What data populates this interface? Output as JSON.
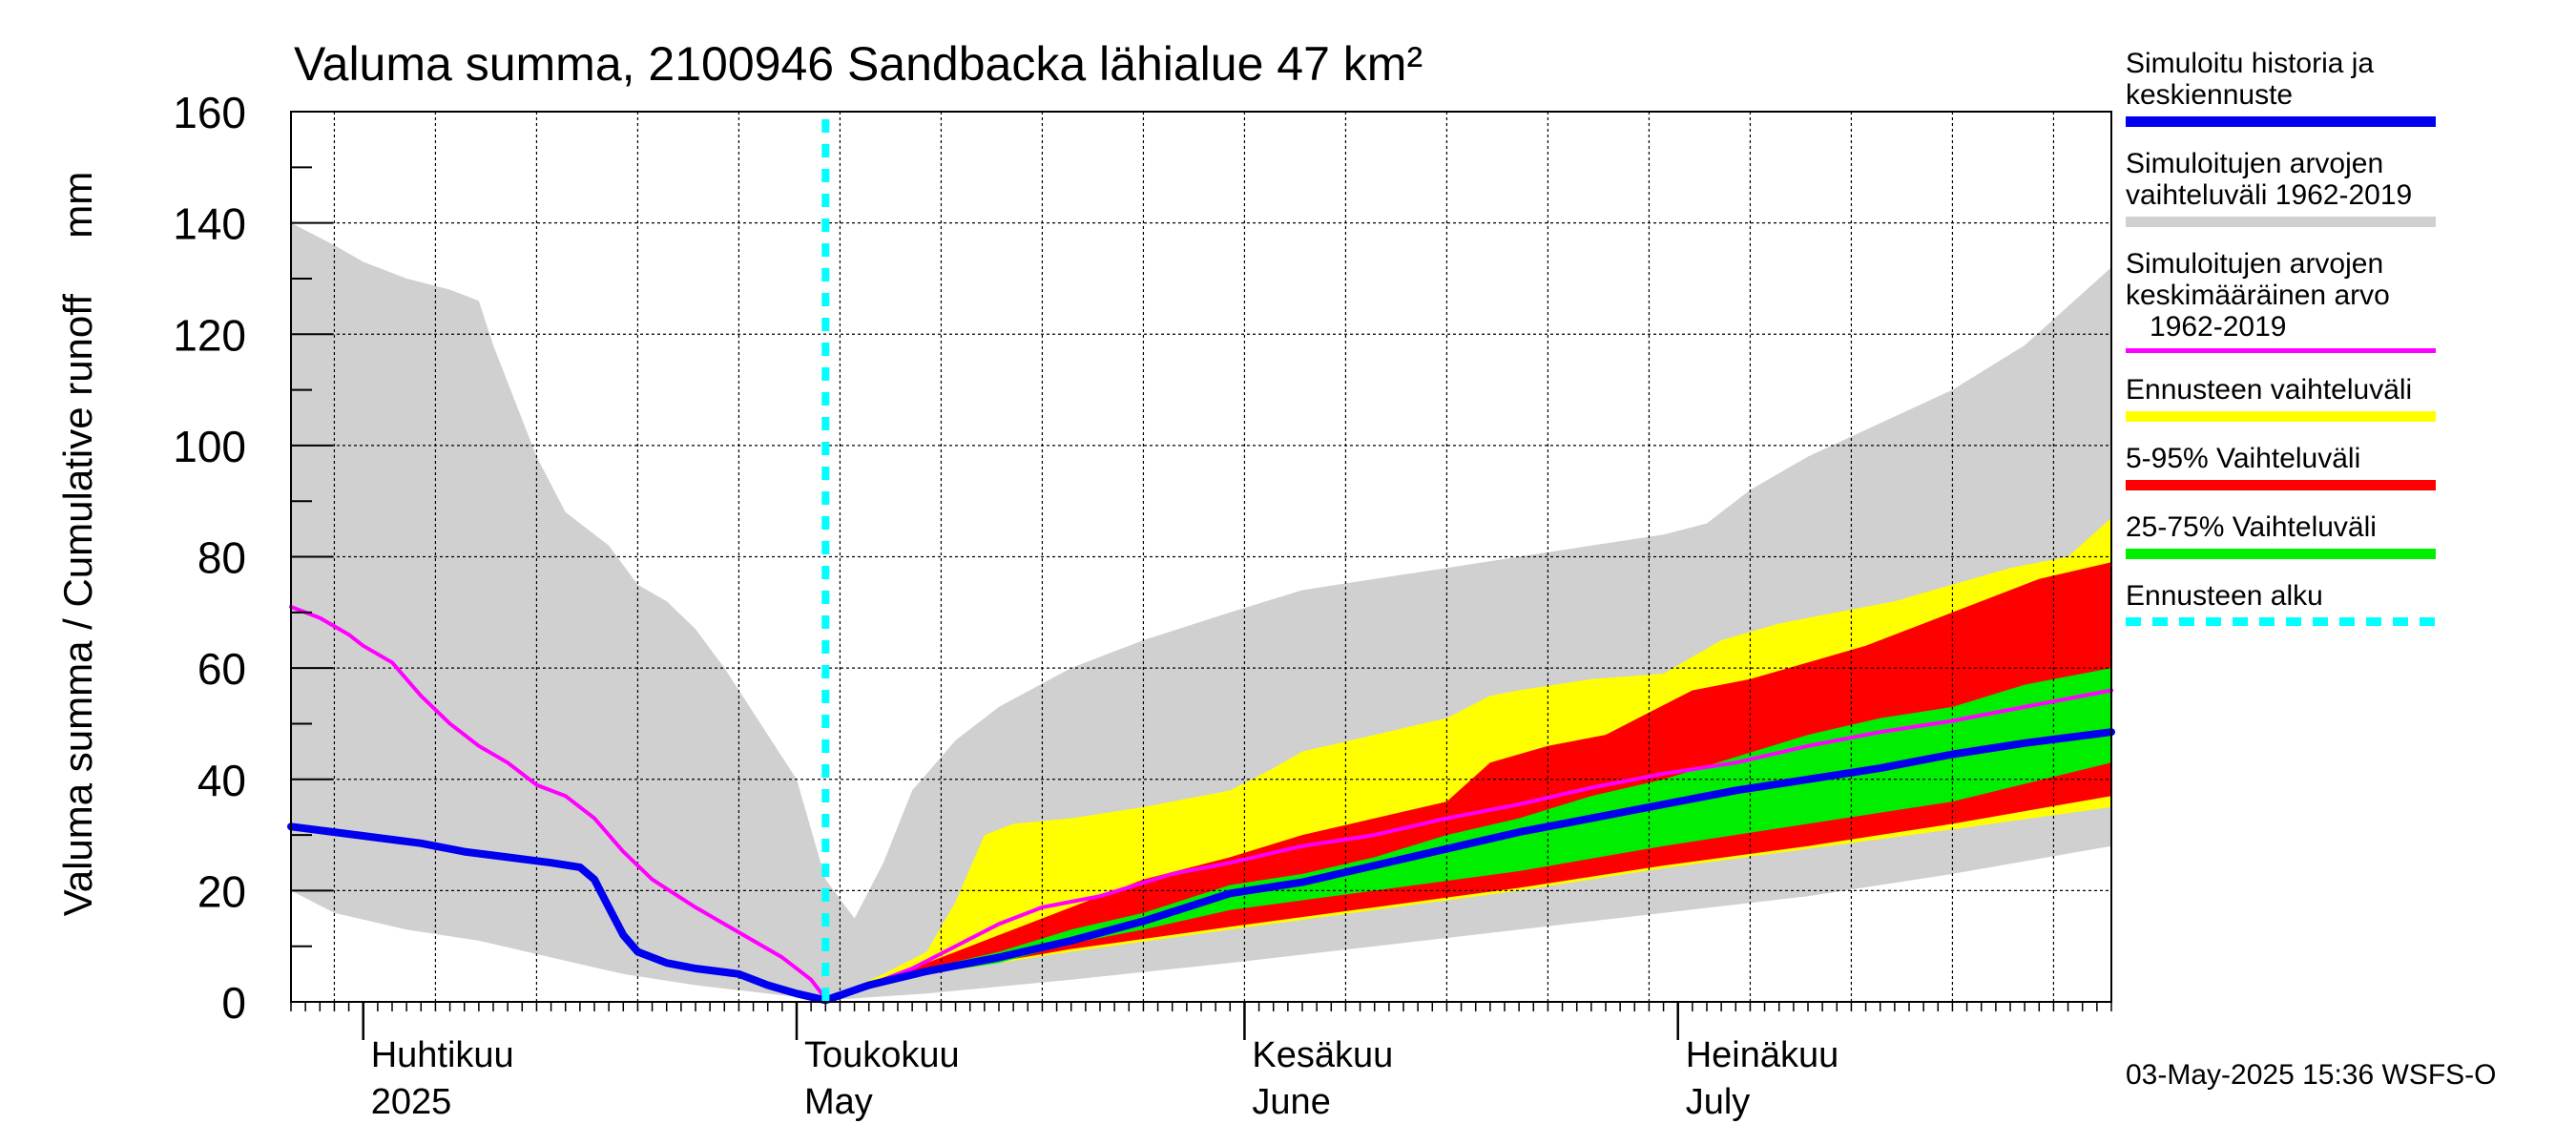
{
  "chart_data": {
    "type": "area",
    "title": "Valuma summa, 2100946 Sandbacka lähialue 47 km²",
    "ylabel": "Valuma summa / Cumulative runoff     mm",
    "ylim": [
      0,
      160
    ],
    "yticks": [
      "0",
      "20",
      "40",
      "60",
      "80",
      "100",
      "120",
      "140",
      "160"
    ],
    "xlim": [
      "2025-03-27",
      "2025-07-31"
    ],
    "forecast_start": "2025-05-03",
    "grid": true,
    "legend_placement": "right",
    "month_labels": [
      {
        "date": "2025-04-01",
        "fi": "Huhtikuu",
        "en": "2025"
      },
      {
        "date": "2025-05-01",
        "fi": "Toukokuu",
        "en": "May"
      },
      {
        "date": "2025-06-01",
        "fi": "Kesäkuu",
        "en": "June"
      },
      {
        "date": "2025-07-01",
        "fi": "Heinäkuu",
        "en": "July"
      }
    ],
    "series": [
      {
        "name": "Simuloitujen arvojen vaihteluväli 1962-2019",
        "kind": "band",
        "color": "#d0d0d0",
        "upper": [
          [
            "2025-03-27",
            140
          ],
          [
            "2025-03-30",
            136
          ],
          [
            "2025-04-01",
            133
          ],
          [
            "2025-04-04",
            130
          ],
          [
            "2025-04-07",
            128
          ],
          [
            "2025-04-09",
            126
          ],
          [
            "2025-04-10",
            118
          ],
          [
            "2025-04-13",
            98
          ],
          [
            "2025-04-15",
            88
          ],
          [
            "2025-04-18",
            82
          ],
          [
            "2025-04-20",
            75
          ],
          [
            "2025-04-22",
            72
          ],
          [
            "2025-04-24",
            67
          ],
          [
            "2025-04-26",
            60
          ],
          [
            "2025-04-28",
            52
          ],
          [
            "2025-05-01",
            40
          ],
          [
            "2025-05-03",
            22
          ],
          [
            "2025-05-05",
            15
          ],
          [
            "2025-05-07",
            25
          ],
          [
            "2025-05-09",
            38
          ],
          [
            "2025-05-12",
            47
          ],
          [
            "2025-05-15",
            53
          ],
          [
            "2025-05-20",
            60
          ],
          [
            "2025-05-25",
            65
          ],
          [
            "2025-05-31",
            70
          ],
          [
            "2025-06-05",
            74
          ],
          [
            "2025-06-10",
            76
          ],
          [
            "2025-06-15",
            78
          ],
          [
            "2025-06-20",
            80
          ],
          [
            "2025-06-25",
            82
          ],
          [
            "2025-06-30",
            84
          ],
          [
            "2025-07-03",
            86
          ],
          [
            "2025-07-06",
            92
          ],
          [
            "2025-07-10",
            98
          ],
          [
            "2025-07-15",
            104
          ],
          [
            "2025-07-20",
            110
          ],
          [
            "2025-07-25",
            118
          ],
          [
            "2025-07-31",
            132
          ]
        ],
        "lower": [
          [
            "2025-03-27",
            20
          ],
          [
            "2025-03-30",
            16
          ],
          [
            "2025-04-04",
            13
          ],
          [
            "2025-04-09",
            11
          ],
          [
            "2025-04-14",
            8
          ],
          [
            "2025-04-19",
            5
          ],
          [
            "2025-04-24",
            3
          ],
          [
            "2025-04-29",
            1.5
          ],
          [
            "2025-05-03",
            0.3
          ],
          [
            "2025-05-10",
            1.5
          ],
          [
            "2025-05-20",
            4
          ],
          [
            "2025-05-31",
            7
          ],
          [
            "2025-06-10",
            10
          ],
          [
            "2025-06-20",
            13
          ],
          [
            "2025-06-30",
            16
          ],
          [
            "2025-07-10",
            19
          ],
          [
            "2025-07-20",
            23
          ],
          [
            "2025-07-31",
            28
          ]
        ]
      },
      {
        "name": "Ennusteen vaihteluväli",
        "kind": "band",
        "color": "#ffff00",
        "upper": [
          [
            "2025-05-03",
            0.3
          ],
          [
            "2025-05-07",
            5
          ],
          [
            "2025-05-10",
            9
          ],
          [
            "2025-05-12",
            18
          ],
          [
            "2025-05-14",
            30
          ],
          [
            "2025-05-16",
            32
          ],
          [
            "2025-05-20",
            33
          ],
          [
            "2025-05-25",
            35
          ],
          [
            "2025-05-31",
            38
          ],
          [
            "2025-06-03",
            42
          ],
          [
            "2025-06-05",
            45
          ],
          [
            "2025-06-10",
            48
          ],
          [
            "2025-06-15",
            51
          ],
          [
            "2025-06-18",
            55
          ],
          [
            "2025-06-20",
            56
          ],
          [
            "2025-06-25",
            58
          ],
          [
            "2025-06-30",
            59
          ],
          [
            "2025-07-04",
            65
          ],
          [
            "2025-07-08",
            68
          ],
          [
            "2025-07-12",
            70
          ],
          [
            "2025-07-16",
            72
          ],
          [
            "2025-07-20",
            75
          ],
          [
            "2025-07-24",
            78
          ],
          [
            "2025-07-28",
            80
          ],
          [
            "2025-07-31",
            87
          ]
        ],
        "lower": [
          [
            "2025-05-03",
            0.3
          ],
          [
            "2025-05-10",
            5
          ],
          [
            "2025-05-20",
            9
          ],
          [
            "2025-05-31",
            13
          ],
          [
            "2025-06-10",
            16.5
          ],
          [
            "2025-06-20",
            20
          ],
          [
            "2025-06-30",
            24
          ],
          [
            "2025-07-10",
            27.5
          ],
          [
            "2025-07-20",
            31
          ],
          [
            "2025-07-31",
            35
          ]
        ]
      },
      {
        "name": "5-95% Vaihteluväli",
        "kind": "band",
        "color": "#ff0000",
        "upper": [
          [
            "2025-05-03",
            0.3
          ],
          [
            "2025-05-10",
            7
          ],
          [
            "2025-05-15",
            12
          ],
          [
            "2025-05-20",
            17
          ],
          [
            "2025-05-25",
            22
          ],
          [
            "2025-05-31",
            26
          ],
          [
            "2025-06-05",
            30
          ],
          [
            "2025-06-10",
            33
          ],
          [
            "2025-06-15",
            36
          ],
          [
            "2025-06-18",
            43
          ],
          [
            "2025-06-22",
            46
          ],
          [
            "2025-06-26",
            48
          ],
          [
            "2025-06-29",
            52
          ],
          [
            "2025-07-02",
            56
          ],
          [
            "2025-07-06",
            58
          ],
          [
            "2025-07-10",
            61
          ],
          [
            "2025-07-14",
            64
          ],
          [
            "2025-07-18",
            68
          ],
          [
            "2025-07-22",
            72
          ],
          [
            "2025-07-26",
            76
          ],
          [
            "2025-07-31",
            79
          ]
        ],
        "lower": [
          [
            "2025-05-03",
            0.3
          ],
          [
            "2025-05-10",
            5
          ],
          [
            "2025-05-20",
            9.5
          ],
          [
            "2025-05-31",
            13.5
          ],
          [
            "2025-06-10",
            17
          ],
          [
            "2025-06-20",
            20.5
          ],
          [
            "2025-06-30",
            24.5
          ],
          [
            "2025-07-10",
            28
          ],
          [
            "2025-07-20",
            32
          ],
          [
            "2025-07-31",
            37
          ]
        ]
      },
      {
        "name": "25-75% Vaihteluväli",
        "kind": "band",
        "color": "#00ee00",
        "upper": [
          [
            "2025-05-03",
            0.3
          ],
          [
            "2025-05-10",
            6
          ],
          [
            "2025-05-15",
            9
          ],
          [
            "2025-05-20",
            13
          ],
          [
            "2025-05-25",
            16
          ],
          [
            "2025-05-31",
            21
          ],
          [
            "2025-06-05",
            23
          ],
          [
            "2025-06-10",
            26
          ],
          [
            "2025-06-15",
            30
          ],
          [
            "2025-06-20",
            33
          ],
          [
            "2025-06-25",
            37
          ],
          [
            "2025-06-30",
            40
          ],
          [
            "2025-07-05",
            44
          ],
          [
            "2025-07-10",
            48
          ],
          [
            "2025-07-15",
            51
          ],
          [
            "2025-07-20",
            53
          ],
          [
            "2025-07-25",
            57
          ],
          [
            "2025-07-31",
            60
          ]
        ],
        "lower": [
          [
            "2025-05-03",
            0.3
          ],
          [
            "2025-05-10",
            5
          ],
          [
            "2025-05-15",
            7
          ],
          [
            "2025-05-20",
            10.5
          ],
          [
            "2025-05-25",
            13
          ],
          [
            "2025-05-31",
            16.5
          ],
          [
            "2025-06-10",
            20
          ],
          [
            "2025-06-20",
            23.5
          ],
          [
            "2025-06-30",
            28
          ],
          [
            "2025-07-10",
            32
          ],
          [
            "2025-07-20",
            36
          ],
          [
            "2025-07-31",
            43
          ]
        ]
      },
      {
        "name": "Simuloitujen arvojen keskimääräinen arvo 1962-2019",
        "kind": "line",
        "color": "#ff00ff",
        "points": [
          [
            "2025-03-27",
            71
          ],
          [
            "2025-03-29",
            69
          ],
          [
            "2025-03-31",
            66
          ],
          [
            "2025-04-01",
            64
          ],
          [
            "2025-04-03",
            61
          ],
          [
            "2025-04-05",
            55
          ],
          [
            "2025-04-07",
            50
          ],
          [
            "2025-04-09",
            46
          ],
          [
            "2025-04-11",
            43
          ],
          [
            "2025-04-13",
            39
          ],
          [
            "2025-04-15",
            37
          ],
          [
            "2025-04-17",
            33
          ],
          [
            "2025-04-19",
            27
          ],
          [
            "2025-04-21",
            22
          ],
          [
            "2025-04-24",
            17
          ],
          [
            "2025-04-27",
            12.5
          ],
          [
            "2025-04-30",
            8
          ],
          [
            "2025-05-02",
            4
          ],
          [
            "2025-05-03",
            0.6
          ],
          [
            "2025-05-06",
            3
          ],
          [
            "2025-05-09",
            6
          ],
          [
            "2025-05-12",
            10
          ],
          [
            "2025-05-15",
            14
          ],
          [
            "2025-05-18",
            17
          ],
          [
            "2025-05-22",
            19
          ],
          [
            "2025-05-27",
            23
          ],
          [
            "2025-05-31",
            25
          ],
          [
            "2025-06-05",
            28
          ],
          [
            "2025-06-10",
            30
          ],
          [
            "2025-06-15",
            33
          ],
          [
            "2025-06-20",
            35.5
          ],
          [
            "2025-06-25",
            38.5
          ],
          [
            "2025-06-30",
            41
          ],
          [
            "2025-07-05",
            43
          ],
          [
            "2025-07-10",
            46
          ],
          [
            "2025-07-15",
            48.5
          ],
          [
            "2025-07-20",
            50.5
          ],
          [
            "2025-07-25",
            53
          ],
          [
            "2025-07-31",
            56
          ]
        ]
      },
      {
        "name": "Simuloitu historia ja keskiennuste",
        "kind": "line",
        "color": "#0000ee",
        "points": [
          [
            "2025-03-27",
            31.5
          ],
          [
            "2025-03-30",
            30.5
          ],
          [
            "2025-04-02",
            29.5
          ],
          [
            "2025-04-05",
            28.5
          ],
          [
            "2025-04-08",
            27
          ],
          [
            "2025-04-11",
            26
          ],
          [
            "2025-04-14",
            25
          ],
          [
            "2025-04-16",
            24.2
          ],
          [
            "2025-04-17",
            22
          ],
          [
            "2025-04-18",
            17
          ],
          [
            "2025-04-19",
            12
          ],
          [
            "2025-04-20",
            9
          ],
          [
            "2025-04-22",
            7
          ],
          [
            "2025-04-24",
            6
          ],
          [
            "2025-04-27",
            5
          ],
          [
            "2025-04-29",
            3
          ],
          [
            "2025-05-01",
            1.5
          ],
          [
            "2025-05-03",
            0.3
          ],
          [
            "2025-05-06",
            3
          ],
          [
            "2025-05-10",
            5.5
          ],
          [
            "2025-05-15",
            8
          ],
          [
            "2025-05-20",
            11
          ],
          [
            "2025-05-25",
            14.5
          ],
          [
            "2025-05-31",
            19.5
          ],
          [
            "2025-06-05",
            21.5
          ],
          [
            "2025-06-10",
            24.5
          ],
          [
            "2025-06-15",
            27.5
          ],
          [
            "2025-06-20",
            30.5
          ],
          [
            "2025-06-25",
            33
          ],
          [
            "2025-06-30",
            35.5
          ],
          [
            "2025-07-05",
            38
          ],
          [
            "2025-07-10",
            40
          ],
          [
            "2025-07-15",
            42
          ],
          [
            "2025-07-20",
            44.5
          ],
          [
            "2025-07-25",
            46.5
          ],
          [
            "2025-07-31",
            48.5
          ]
        ]
      }
    ]
  },
  "legend": [
    {
      "label": "Simuloitu historia ja\nkeskiennuste",
      "color": "#0000ee",
      "style": "solid"
    },
    {
      "label": "Simuloitujen arvojen\nvaihteluväli 1962-2019",
      "color": "#d0d0d0",
      "style": "solid"
    },
    {
      "label": "Simuloitujen arvojen\nkeskimääräinen arvo\n   1962-2019",
      "color": "#ff00ff",
      "style": "thin"
    },
    {
      "label": "Ennusteen vaihteluväli",
      "color": "#ffff00",
      "style": "solid"
    },
    {
      "label": "5-95% Vaihteluväli",
      "color": "#ff0000",
      "style": "solid"
    },
    {
      "label": "25-75% Vaihteluväli",
      "color": "#00ee00",
      "style": "solid"
    },
    {
      "label": "Ennusteen alku",
      "color": "#00ffff",
      "style": "dashed"
    }
  ],
  "timestamp": "03-May-2025 15:36 WSFS-O"
}
